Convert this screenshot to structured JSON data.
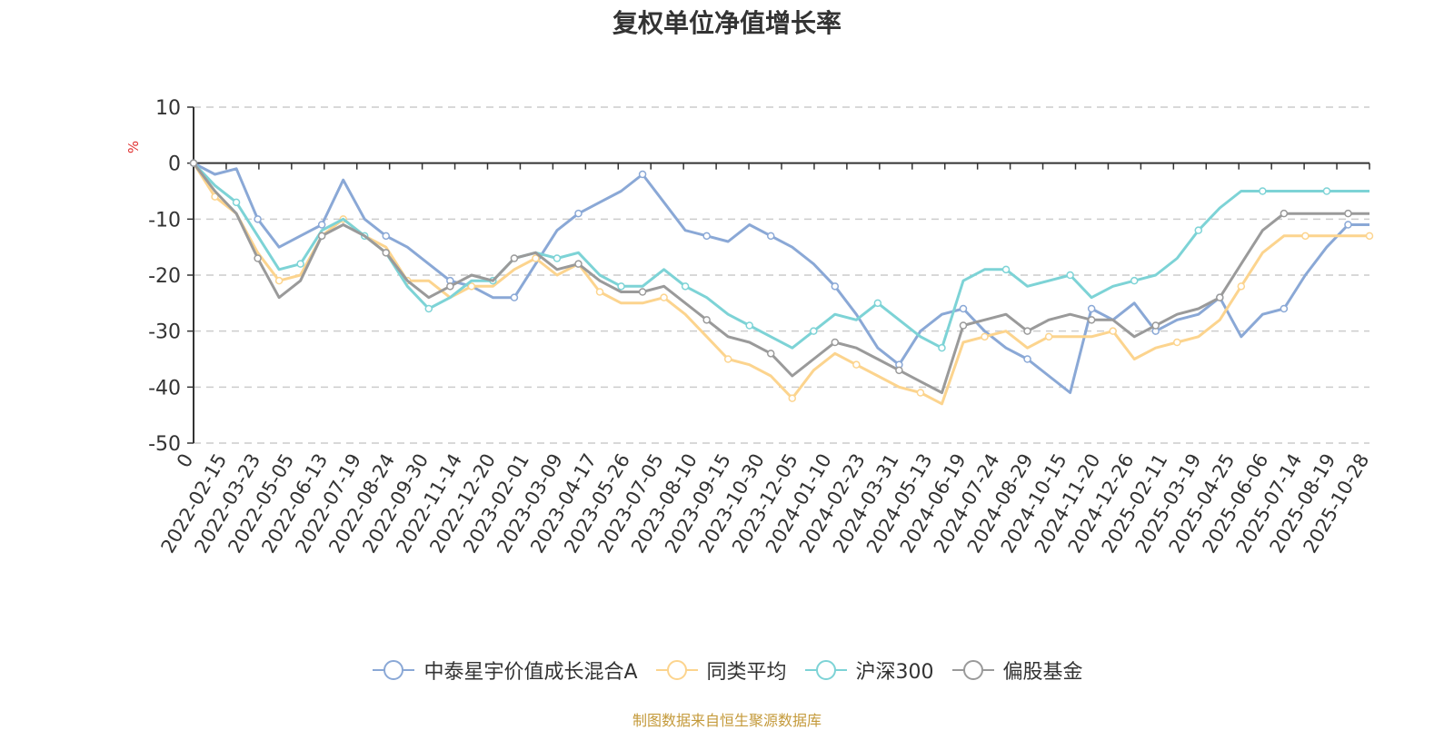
{
  "chart_data": {
    "type": "line",
    "title": "复权单位净值增长率",
    "ylabel": "%",
    "ylim": [
      -50,
      10
    ],
    "yticks": [
      10,
      0,
      -10,
      -20,
      -30,
      -40,
      -50
    ],
    "x_tick_labels": [
      "0",
      "2022-02-15",
      "2022-03-23",
      "2022-05-05",
      "2022-06-13",
      "2022-07-19",
      "2022-08-24",
      "2022-09-30",
      "2022-11-14",
      "2022-12-20",
      "2023-02-01",
      "2023-03-09",
      "2023-04-17",
      "2023-05-26",
      "2023-07-05",
      "2023-08-10",
      "2023-09-15",
      "2023-10-30",
      "2023-12-05",
      "2024-01-10",
      "2024-02-23",
      "2024-03-31",
      "2024-05-13",
      "2024-06-19",
      "2024-07-24",
      "2024-08-29",
      "2024-10-15",
      "2024-11-20",
      "2024-12-26",
      "2025-02-11",
      "2025-03-19",
      "2025-04-25",
      "2025-06-06",
      "2025-07-14",
      "2025-08-19",
      "2025-10-28"
    ],
    "grid": true,
    "legend_position": "bottom",
    "series": [
      {
        "name": "中泰星宇价值成长混合A",
        "color": "#8aa8d6",
        "values": [
          0,
          -2,
          -1,
          -10,
          -15,
          -13,
          -11,
          -3,
          -10,
          -13,
          -15,
          -18,
          -21,
          -22,
          -24,
          -24,
          -18,
          -12,
          -9,
          -7,
          -5,
          -2,
          -7,
          -12,
          -13,
          -14,
          -11,
          -13,
          -15,
          -18,
          -22,
          -27,
          -33,
          -36,
          -30,
          -27,
          -26,
          -30,
          -33,
          -35,
          -38,
          -41,
          -26,
          -28,
          -25,
          -30,
          -28,
          -27,
          -24,
          -31,
          -27,
          -26,
          -20,
          -15,
          -11,
          -11
        ]
      },
      {
        "name": "同类平均",
        "color": "#fcd48e",
        "values": [
          0,
          -6,
          -9,
          -16,
          -21,
          -20,
          -13,
          -10,
          -13,
          -15,
          -21,
          -21,
          -24,
          -22,
          -22,
          -19,
          -17,
          -20,
          -18,
          -23,
          -25,
          -25,
          -24,
          -27,
          -31,
          -35,
          -36,
          -38,
          -42,
          -37,
          -34,
          -36,
          -38,
          -40,
          -41,
          -43,
          -32,
          -31,
          -30,
          -33,
          -31,
          -31,
          -31,
          -30,
          -35,
          -33,
          -32,
          -31,
          -28,
          -22,
          -16,
          -13,
          -13,
          -13,
          -13,
          -13
        ]
      },
      {
        "name": "沪深300",
        "color": "#7dd3d6",
        "values": [
          0,
          -4,
          -7,
          -13,
          -19,
          -18,
          -12,
          -10,
          -13,
          -16,
          -22,
          -26,
          -24,
          -21,
          -21,
          -17,
          -16,
          -17,
          -16,
          -20,
          -22,
          -22,
          -19,
          -22,
          -24,
          -27,
          -29,
          -31,
          -33,
          -30,
          -27,
          -28,
          -25,
          -28,
          -31,
          -33,
          -21,
          -19,
          -19,
          -22,
          -21,
          -20,
          -24,
          -22,
          -21,
          -20,
          -17,
          -12,
          -8,
          -5,
          -5,
          -5,
          -5,
          -5,
          -5,
          -5
        ]
      },
      {
        "name": "偏股基金",
        "color": "#9a9a9a",
        "values": [
          0,
          -5,
          -9,
          -17,
          -24,
          -21,
          -13,
          -11,
          -13,
          -16,
          -21,
          -24,
          -22,
          -20,
          -21,
          -17,
          -16,
          -19,
          -18,
          -21,
          -23,
          -23,
          -22,
          -25,
          -28,
          -31,
          -32,
          -34,
          -38,
          -35,
          -32,
          -33,
          -35,
          -37,
          -39,
          -41,
          -29,
          -28,
          -27,
          -30,
          -28,
          -27,
          -28,
          -28,
          -31,
          -29,
          -27,
          -26,
          -24,
          -18,
          -12,
          -9,
          -9,
          -9,
          -9,
          -9
        ]
      }
    ]
  },
  "source_text": "制图数据来自恒生聚源数据库"
}
